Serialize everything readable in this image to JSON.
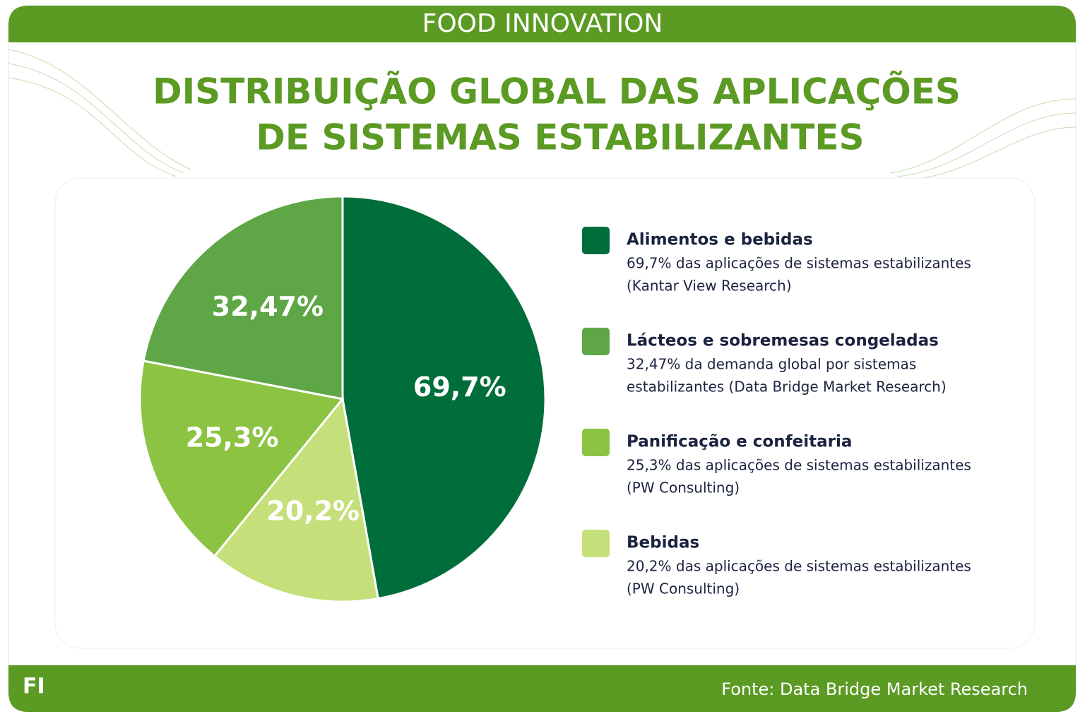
{
  "header": {
    "brand": "FOOD INNOVATION"
  },
  "chart_data": {
    "type": "pie",
    "title": [
      "DISTRIBUIÇÃO GLOBAL DAS APLICAÇÕES",
      "DE SISTEMAS ESTABILIZANTES"
    ],
    "categories": [
      "Alimentos e bebidas",
      "Lácteos e sobremesas congeladas",
      "Panificação e confeitaria",
      "Bebidas"
    ],
    "values": [
      69.7,
      32.47,
      25.3,
      20.2
    ],
    "value_labels": [
      "69,7%",
      "32,47%",
      "25,3%",
      "20,2%"
    ],
    "colors": [
      "#006e3a",
      "#5ea646",
      "#8cc342",
      "#c5e07a"
    ],
    "descriptions": [
      [
        "69,7% das aplicações de sistemas estabilizantes",
        "(Kantar View Research)"
      ],
      [
        "32,47% da demanda global por sistemas",
        "estabilizantes (Data Bridge Market Research)"
      ],
      [
        "25,3% das aplicações de sistemas estabilizantes",
        "(PW Consulting)"
      ],
      [
        "20,2% das aplicações de sistemas estabilizantes",
        "(PW Consulting)"
      ]
    ]
  },
  "footer": {
    "logo": "FI",
    "source": "Fonte: Data Bridge Market Research"
  }
}
